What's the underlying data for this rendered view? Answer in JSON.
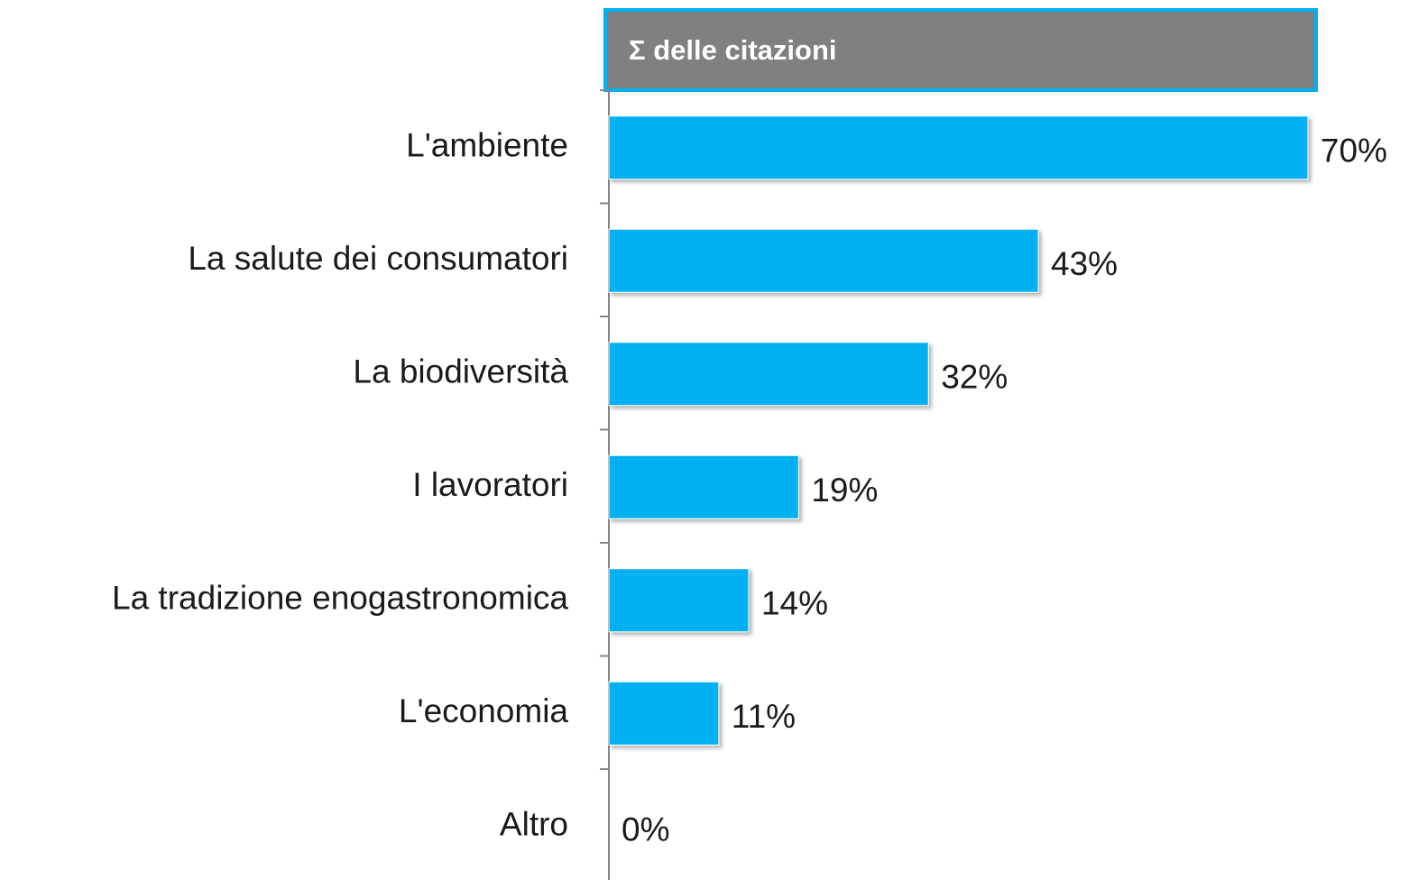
{
  "chart_data": {
    "type": "bar",
    "orientation": "horizontal",
    "title": "Σ delle citazioni",
    "categories": [
      "L'ambiente",
      "La salute dei consumatori",
      "La biodiversità",
      "I lavoratori",
      "La tradizione enogastronomica",
      "L'economia",
      "Altro"
    ],
    "values": [
      70,
      43,
      32,
      19,
      14,
      11,
      0
    ],
    "value_labels": [
      "70%",
      "43%",
      "32%",
      "19%",
      "14%",
      "11%",
      "0%"
    ],
    "color": "#00b0f0"
  }
}
